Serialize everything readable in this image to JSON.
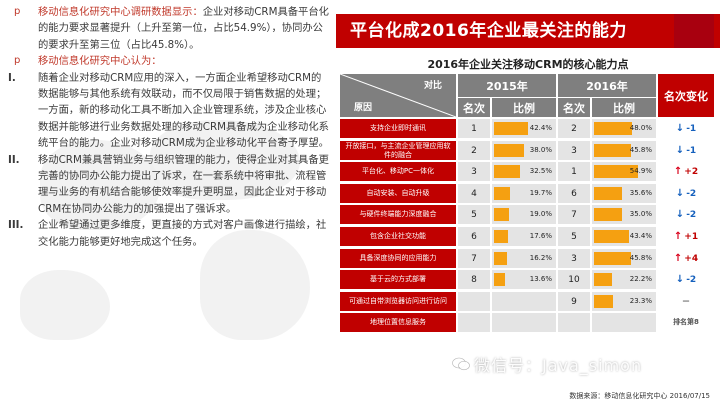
{
  "left": {
    "p1_marker": "p",
    "p1_highlight": "移动信息化研究中心调研数据显示：",
    "p1_body": "企业对移动CRM具备平台化的能力要求显著提升（上升至第一位，占比54.9%），协同办公的要求升至第三位（占比45.8%）。",
    "p2_marker": "p",
    "p2_highlight": "移动信息化研究中心认为：",
    "items": [
      {
        "roman": "I.",
        "text": "随着企业对移动CRM应用的深入，一方面企业希望移动CRM的数据能够与其他系统有效联动，而不仅局限于销售数据的处理；一方面，新的移动化工具不断加入企业管理系统，涉及企业核心数据并能够进行业务数据处理的移动CRM具备成为企业移动化系统平台的能力。企业对移动CRM成为企业移动化平台寄予厚望。"
      },
      {
        "roman": "II.",
        "text": "移动CRM兼具营销业务与组织管理的能力，使得企业对其具备更完善的协同办公能力提出了诉求，在一套系统中将审批、流程管理与业务的有机结合能够使效率提升更明显，因此企业对于移动CRM在协同办公能力的加强提出了强诉求。"
      },
      {
        "roman": "III.",
        "text": "企业希望通过更多维度，更直接的方式对客户画像进行描绘，社交化能力能够更好地完成这个任务。"
      }
    ]
  },
  "banner": {
    "title": "平台化成2016年企业最关注的能力"
  },
  "table": {
    "title": "2016年企业关注移动CRM的核心能力点",
    "corner_top": "对比",
    "corner_bottom": "原因",
    "year1": "2015年",
    "year2": "2016年",
    "change_header": "名次变化",
    "rank_label": "名次",
    "pct_label": "比例",
    "rows": [
      {
        "reason": "支持企业即时通讯",
        "r15": "1",
        "p15": "42.4%",
        "v15": 42.4,
        "r16": "2",
        "p16": "48.0%",
        "v16": 48.0,
        "dir": "down",
        "change": "-1"
      },
      {
        "reason": "开放接口，与主流企业管理应用软件的融合",
        "r15": "2",
        "p15": "38.0%",
        "v15": 38.0,
        "r16": "3",
        "p16": "45.8%",
        "v16": 45.8,
        "dir": "down",
        "change": "-1"
      },
      {
        "reason": "平台化、移动PC一体化",
        "r15": "3",
        "p15": "32.5%",
        "v15": 32.5,
        "r16": "1",
        "p16": "54.9%",
        "v16": 54.9,
        "dir": "up",
        "change": "+2"
      },
      {
        "reason": "自动安装、自动升级",
        "r15": "4",
        "p15": "19.7%",
        "v15": 19.7,
        "r16": "6",
        "p16": "35.6%",
        "v16": 35.6,
        "dir": "down",
        "change": "-2"
      },
      {
        "reason": "与硬件终端能力深度融合",
        "r15": "5",
        "p15": "19.0%",
        "v15": 19.0,
        "r16": "7",
        "p16": "35.0%",
        "v16": 35.0,
        "dir": "down",
        "change": "-2"
      },
      {
        "reason": "包含企业社交功能",
        "r15": "6",
        "p15": "17.6%",
        "v15": 17.6,
        "r16": "5",
        "p16": "43.4%",
        "v16": 43.4,
        "dir": "up",
        "change": "+1"
      },
      {
        "reason": "具备深度协同的应用能力",
        "r15": "7",
        "p15": "16.2%",
        "v15": 16.2,
        "r16": "3",
        "p16": "45.8%",
        "v16": 45.8,
        "dir": "up",
        "change": "+4"
      },
      {
        "reason": "基于云的方式部署",
        "r15": "8",
        "p15": "13.6%",
        "v15": 13.6,
        "r16": "10",
        "p16": "22.2%",
        "v16": 22.2,
        "dir": "down",
        "change": "-2"
      },
      {
        "reason": "可通过自带浏览器访问进行访问",
        "r15": "",
        "p15": "",
        "v15": 0,
        "r16": "9",
        "p16": "23.3%",
        "v16": 23.3,
        "dir": "none",
        "change": "—"
      },
      {
        "reason": "地理位置信息服务",
        "r15": "",
        "p15": "",
        "v15": 0,
        "r16": "",
        "p16": "",
        "v16": 0,
        "dir": "none",
        "change": "排名第8"
      }
    ]
  },
  "source": "数据来源：移动信息化研究中心 2016/07/15",
  "watermark": "微信号：Java_simon",
  "colors": {
    "red": "#c00000",
    "grey": "#7f7f7f",
    "orange": "#f5a011",
    "up": "#d9001b",
    "down": "#1560bd"
  }
}
